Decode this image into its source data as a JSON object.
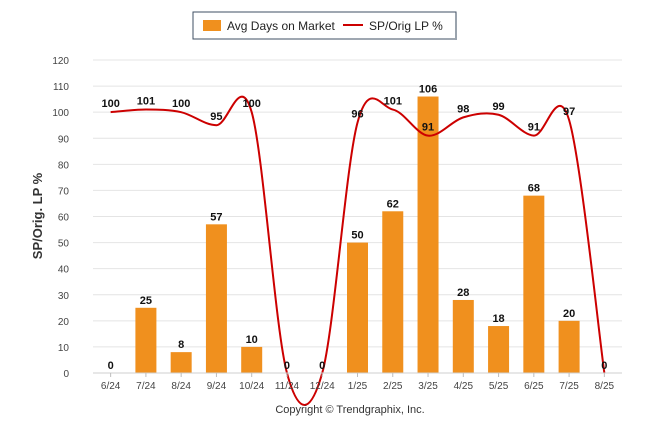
{
  "chart_data": {
    "type": "bar",
    "categories": [
      "6/24",
      "7/24",
      "8/24",
      "9/24",
      "10/24",
      "11/24",
      "12/24",
      "1/25",
      "2/25",
      "3/25",
      "4/25",
      "5/25",
      "6/25",
      "7/25",
      "8/25"
    ],
    "series": [
      {
        "name": "Avg Days on Market",
        "type": "bar",
        "color": "#F0901E",
        "values": [
          0,
          25,
          8,
          57,
          10,
          0,
          0,
          50,
          62,
          106,
          28,
          18,
          68,
          20,
          0
        ]
      },
      {
        "name": "SP/Orig LP %",
        "type": "line",
        "color": "#CC0000",
        "values": [
          100,
          101,
          100,
          95,
          100,
          0,
          0,
          96,
          101,
          91,
          98,
          99,
          91,
          97,
          0
        ]
      }
    ],
    "ylabel": "SP/Orig. LP %",
    "ylim": [
      0,
      120
    ],
    "yticks": [
      0,
      10,
      20,
      30,
      40,
      50,
      60,
      70,
      80,
      90,
      100,
      110,
      120
    ],
    "grid": true,
    "legend_position": "top-center"
  },
  "footer": {
    "copyright": "Copyright © Trendgraphix, Inc."
  }
}
